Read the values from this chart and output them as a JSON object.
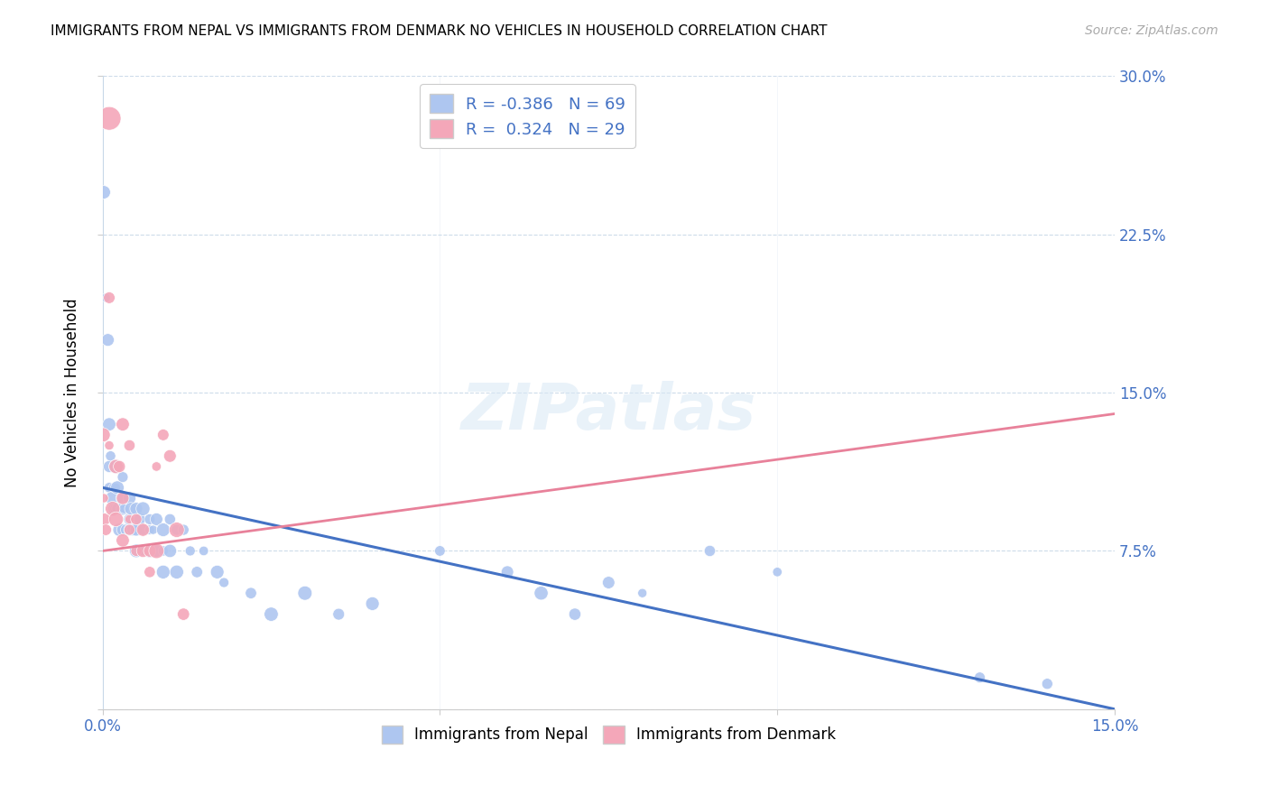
{
  "title": "IMMIGRANTS FROM NEPAL VS IMMIGRANTS FROM DENMARK NO VEHICLES IN HOUSEHOLD CORRELATION CHART",
  "source": "Source: ZipAtlas.com",
  "ylabel": "No Vehicles in Household",
  "legend_labels": [
    "Immigrants from Nepal",
    "Immigrants from Denmark"
  ],
  "nepal_color": "#aec6f0",
  "denmark_color": "#f4a7b9",
  "nepal_line_color": "#4472c4",
  "denmark_line_color": "#e8819a",
  "axis_color": "#4472c4",
  "grid_color": "#c8d8e8",
  "watermark_text": "ZIPatlas",
  "R_nepal": -0.386,
  "N_nepal": 69,
  "R_denmark": 0.324,
  "N_denmark": 29,
  "xlim": [
    0.0,
    0.15
  ],
  "ylim": [
    0.0,
    0.3
  ],
  "xticks": [
    0.0,
    0.05,
    0.1,
    0.15
  ],
  "xtick_labels": [
    "0.0%",
    "",
    "",
    "15.0%"
  ],
  "yticks": [
    0.0,
    0.075,
    0.15,
    0.225,
    0.3
  ],
  "ytick_labels_right": [
    "",
    "7.5%",
    "15.0%",
    "22.5%",
    "30.0%"
  ],
  "nepal_x": [
    0.0002,
    0.0005,
    0.0008,
    0.001,
    0.001,
    0.001,
    0.0012,
    0.0014,
    0.0015,
    0.0016,
    0.0018,
    0.002,
    0.002,
    0.002,
    0.0022,
    0.0023,
    0.0025,
    0.003,
    0.003,
    0.003,
    0.003,
    0.0032,
    0.0035,
    0.004,
    0.004,
    0.004,
    0.0042,
    0.0045,
    0.005,
    0.005,
    0.005,
    0.0055,
    0.006,
    0.006,
    0.006,
    0.007,
    0.007,
    0.007,
    0.0075,
    0.008,
    0.008,
    0.009,
    0.009,
    0.009,
    0.01,
    0.01,
    0.011,
    0.011,
    0.012,
    0.013,
    0.014,
    0.015,
    0.017,
    0.018,
    0.022,
    0.025,
    0.03,
    0.035,
    0.04,
    0.05,
    0.06,
    0.065,
    0.07,
    0.075,
    0.08,
    0.09,
    0.1,
    0.13,
    0.14
  ],
  "nepal_y": [
    0.245,
    0.195,
    0.175,
    0.135,
    0.115,
    0.105,
    0.12,
    0.1,
    0.095,
    0.105,
    0.095,
    0.115,
    0.105,
    0.095,
    0.105,
    0.095,
    0.085,
    0.11,
    0.1,
    0.095,
    0.085,
    0.095,
    0.085,
    0.1,
    0.09,
    0.085,
    0.095,
    0.085,
    0.095,
    0.085,
    0.075,
    0.09,
    0.095,
    0.085,
    0.075,
    0.09,
    0.085,
    0.075,
    0.085,
    0.09,
    0.075,
    0.085,
    0.075,
    0.065,
    0.09,
    0.075,
    0.085,
    0.065,
    0.085,
    0.075,
    0.065,
    0.075,
    0.065,
    0.06,
    0.055,
    0.045,
    0.055,
    0.045,
    0.05,
    0.075,
    0.065,
    0.055,
    0.045,
    0.06,
    0.055,
    0.075,
    0.065,
    0.015,
    0.012
  ],
  "denmark_x": [
    0.0001,
    0.0002,
    0.0003,
    0.0005,
    0.001,
    0.001,
    0.001,
    0.0015,
    0.002,
    0.002,
    0.0025,
    0.003,
    0.003,
    0.003,
    0.004,
    0.004,
    0.004,
    0.005,
    0.005,
    0.006,
    0.006,
    0.007,
    0.007,
    0.008,
    0.008,
    0.009,
    0.01,
    0.011,
    0.012
  ],
  "denmark_y": [
    0.13,
    0.1,
    0.09,
    0.085,
    0.28,
    0.195,
    0.125,
    0.095,
    0.115,
    0.09,
    0.115,
    0.135,
    0.1,
    0.08,
    0.085,
    0.125,
    0.09,
    0.09,
    0.075,
    0.085,
    0.075,
    0.075,
    0.065,
    0.115,
    0.075,
    0.13,
    0.12,
    0.085,
    0.045
  ],
  "nepal_trend": [
    0.105,
    0.0
  ],
  "denmark_trend": [
    0.075,
    0.14
  ],
  "nepal_dot_size": 80,
  "denmark_dot_size": 80
}
